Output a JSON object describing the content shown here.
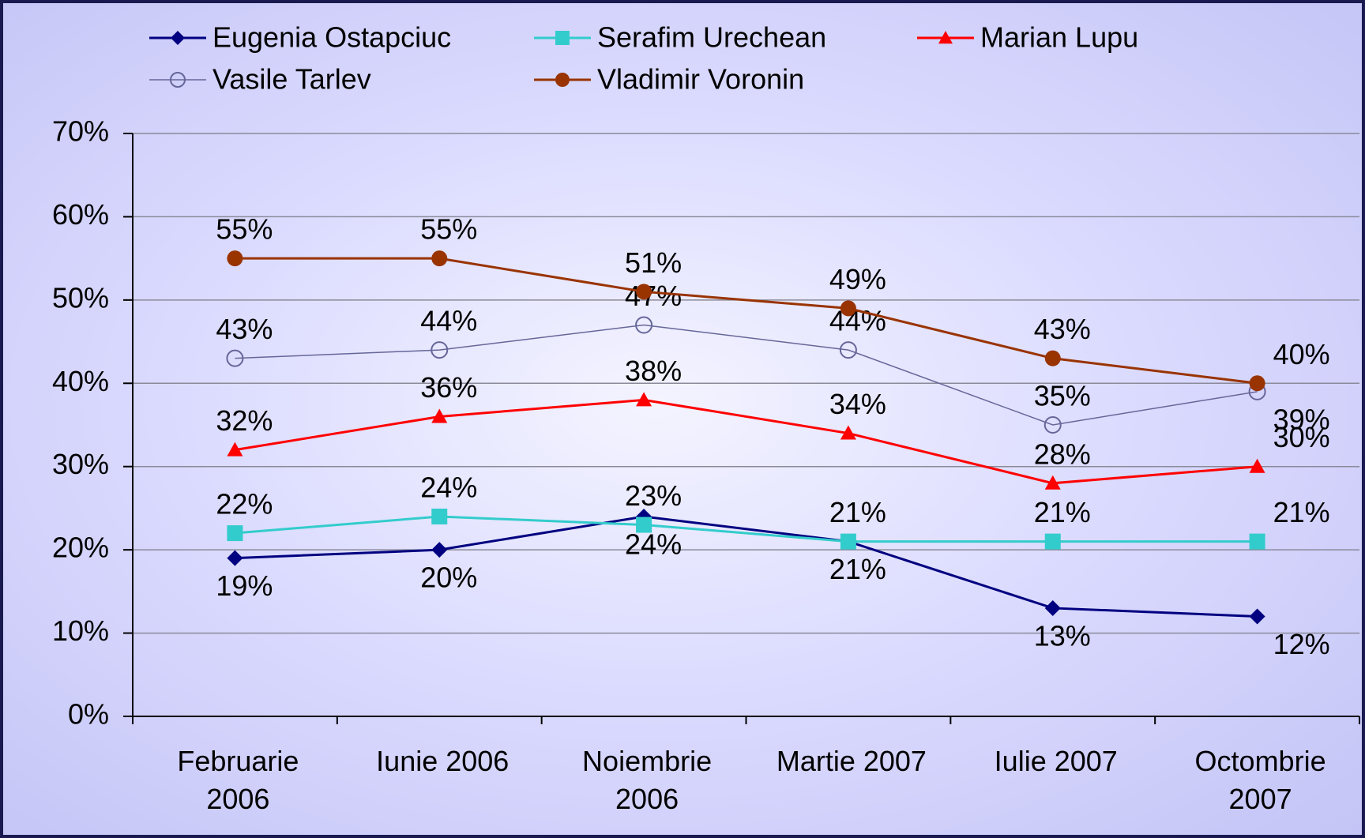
{
  "chart_data": {
    "type": "line",
    "categories": [
      "Februarie 2006",
      "Iunie 2006",
      "Noiembrie 2006",
      "Martie 2007",
      "Iulie 2007",
      "Octombrie 2007"
    ],
    "series": [
      {
        "name": "Eugenia Ostapciuc",
        "color": "#000080",
        "marker": "diamond",
        "values": [
          19,
          20,
          24,
          21,
          13,
          12
        ],
        "value_labels": [
          "19%",
          "20%",
          "24%",
          "21%",
          "13%",
          "12%"
        ]
      },
      {
        "name": "Serafim Urechean",
        "color": "#33cccc",
        "marker": "square",
        "values": [
          22,
          24,
          23,
          21,
          21,
          21
        ],
        "value_labels": [
          "22%",
          "24%",
          "23%",
          "21%",
          "21%",
          "21%"
        ]
      },
      {
        "name": "Marian Lupu",
        "color": "#ff0000",
        "marker": "triangle",
        "values": [
          32,
          36,
          38,
          34,
          28,
          30
        ],
        "value_labels": [
          "32%",
          "36%",
          "38%",
          "34%",
          "28%",
          "30%"
        ]
      },
      {
        "name": "Vasile Tarlev",
        "color": "#666699",
        "marker": "open-circle",
        "values": [
          43,
          44,
          47,
          44,
          35,
          39
        ],
        "value_labels": [
          "43%",
          "44%",
          "47%",
          "44%",
          "35%",
          "39%"
        ]
      },
      {
        "name": "Vladimir Voronin",
        "color": "#993300",
        "marker": "circle",
        "values": [
          55,
          55,
          51,
          49,
          43,
          40
        ],
        "value_labels": [
          "55%",
          "55%",
          "51%",
          "49%",
          "43%",
          "40%"
        ]
      }
    ],
    "ylim": [
      0,
      70
    ],
    "yticks": [
      {
        "value": 0,
        "label": "0%"
      },
      {
        "value": 10,
        "label": "10%"
      },
      {
        "value": 20,
        "label": "20%"
      },
      {
        "value": 30,
        "label": "30%"
      },
      {
        "value": 40,
        "label": "40%"
      },
      {
        "value": 50,
        "label": "50%"
      },
      {
        "value": 60,
        "label": "60%"
      },
      {
        "value": 70,
        "label": "70%"
      }
    ],
    "grid": true,
    "legend": "top"
  }
}
